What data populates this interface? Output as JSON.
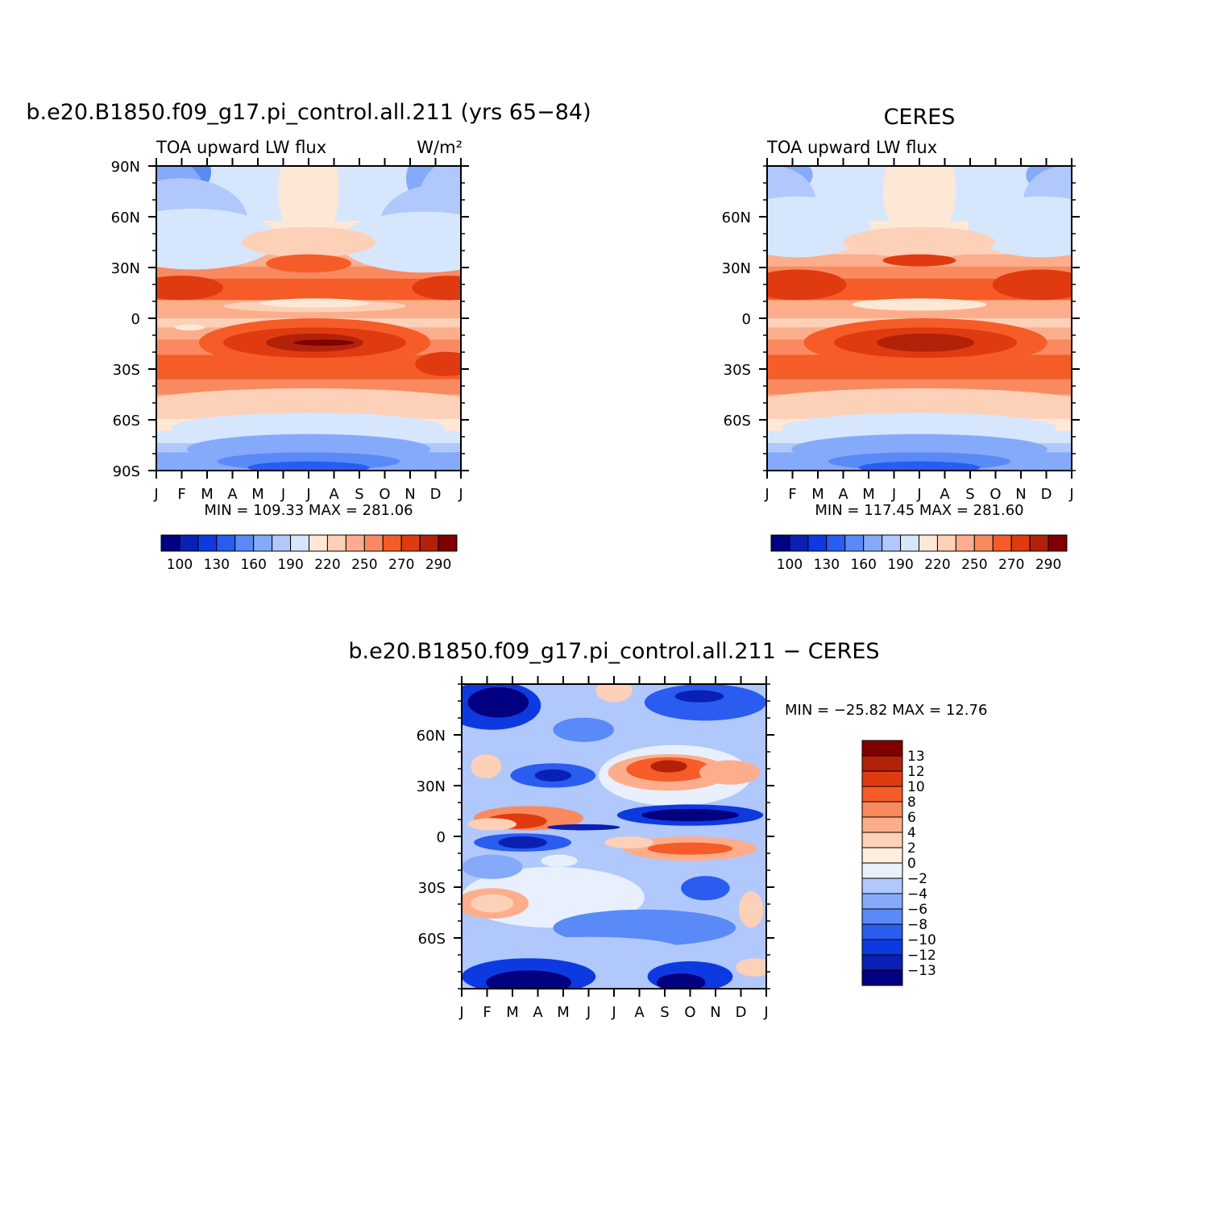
{
  "colors": {
    "abs_levels": [
      "#000080",
      "#0a1fb4",
      "#0d3ae0",
      "#2a5cf0",
      "#5a8af8",
      "#86aafa",
      "#b0c8fc",
      "#d6e6fd",
      "#fde8d6",
      "#fdd0b8",
      "#fcae8c",
      "#f98a60",
      "#f55c28",
      "#e03a10",
      "#b22208",
      "#800000"
    ],
    "diff_levels": [
      "#000080",
      "#0a1fb4",
      "#0d3ae0",
      "#2a5cf0",
      "#5a8af8",
      "#86aafa",
      "#b0c8fc",
      "#e8f0fd",
      "#fdeedd",
      "#fdd0b8",
      "#fcae8c",
      "#f98a60",
      "#f55c28",
      "#e03a10",
      "#b22208",
      "#800000"
    ]
  },
  "panels": {
    "model": {
      "main_title": "b.e20.B1850.f09_g17.pi_control.all.211 (yrs 65−84)",
      "left_label": "TOA upward LW flux",
      "units": "W/m²",
      "minmax": "MIN =  109.33 MAX =  281.06",
      "colorbar_labels": [
        "100",
        "130",
        "160",
        "190",
        "220",
        "250",
        "270",
        "290"
      ]
    },
    "obs": {
      "main_title": "CERES",
      "left_label": "TOA upward LW flux",
      "minmax": "MIN =  117.45 MAX =  281.60",
      "colorbar_labels": [
        "100",
        "130",
        "160",
        "190",
        "220",
        "250",
        "270",
        "290"
      ]
    },
    "diff": {
      "main_title": "b.e20.B1850.f09_g17.pi_control.all.211  −  CERES",
      "minmax": "MIN = −25.82 MAX =   12.76",
      "colorbar_labels": [
        "13",
        "12",
        "10",
        "8",
        "6",
        "4",
        "2",
        "0",
        "−2",
        "−4",
        "−6",
        "−8",
        "−10",
        "−12",
        "−13"
      ]
    }
  },
  "chart_data": [
    {
      "type": "heatmap",
      "title": "b.e20.B1850.f09_g17.pi_control.all.211 (yrs 65−84)",
      "subtitle": "TOA upward LW flux",
      "units": "W/m²",
      "x": [
        "J",
        "F",
        "M",
        "A",
        "M",
        "J",
        "J",
        "A",
        "S",
        "O",
        "N",
        "D",
        "J"
      ],
      "y_ticks": [
        "90N",
        "60N",
        "30N",
        "0",
        "30S",
        "60S",
        "90S"
      ],
      "ylim": [
        -90,
        90
      ],
      "min": 109.33,
      "max": 281.06,
      "levels": [
        100,
        115,
        130,
        145,
        160,
        175,
        190,
        205,
        220,
        235,
        250,
        260,
        270,
        280,
        290
      ],
      "approx_field": "zonal-mean OLR by month: ~260-280 over 10-30N and 5-25S, local minimum ~235 near 5N, ~120-160 at 80-90S in JJA, ~150-180 at 80-90N in DJF"
    },
    {
      "type": "heatmap",
      "title": "CERES",
      "subtitle": "TOA upward LW flux",
      "x": [
        "J",
        "F",
        "M",
        "A",
        "M",
        "J",
        "J",
        "A",
        "S",
        "O",
        "N",
        "D",
        "J"
      ],
      "y_ticks": [
        "60N",
        "30N",
        "0",
        "30S",
        "60S"
      ],
      "ylim": [
        -90,
        90
      ],
      "min": 117.45,
      "max": 281.6,
      "levels": [
        100,
        115,
        130,
        145,
        160,
        175,
        190,
        205,
        220,
        235,
        250,
        260,
        270,
        280,
        290
      ]
    },
    {
      "type": "heatmap",
      "title": "b.e20.B1850.f09_g17.pi_control.all.211  −  CERES",
      "x": [
        "J",
        "F",
        "M",
        "A",
        "M",
        "J",
        "J",
        "A",
        "S",
        "O",
        "N",
        "D",
        "J"
      ],
      "y_ticks": [
        "60N",
        "30N",
        "0",
        "30S",
        "60S"
      ],
      "ylim": [
        -90,
        90
      ],
      "min": -25.82,
      "max": 12.76,
      "levels": [
        -13,
        -12,
        -10,
        -8,
        -6,
        -4,
        -2,
        0,
        2,
        4,
        6,
        8,
        10,
        12,
        13
      ]
    }
  ]
}
